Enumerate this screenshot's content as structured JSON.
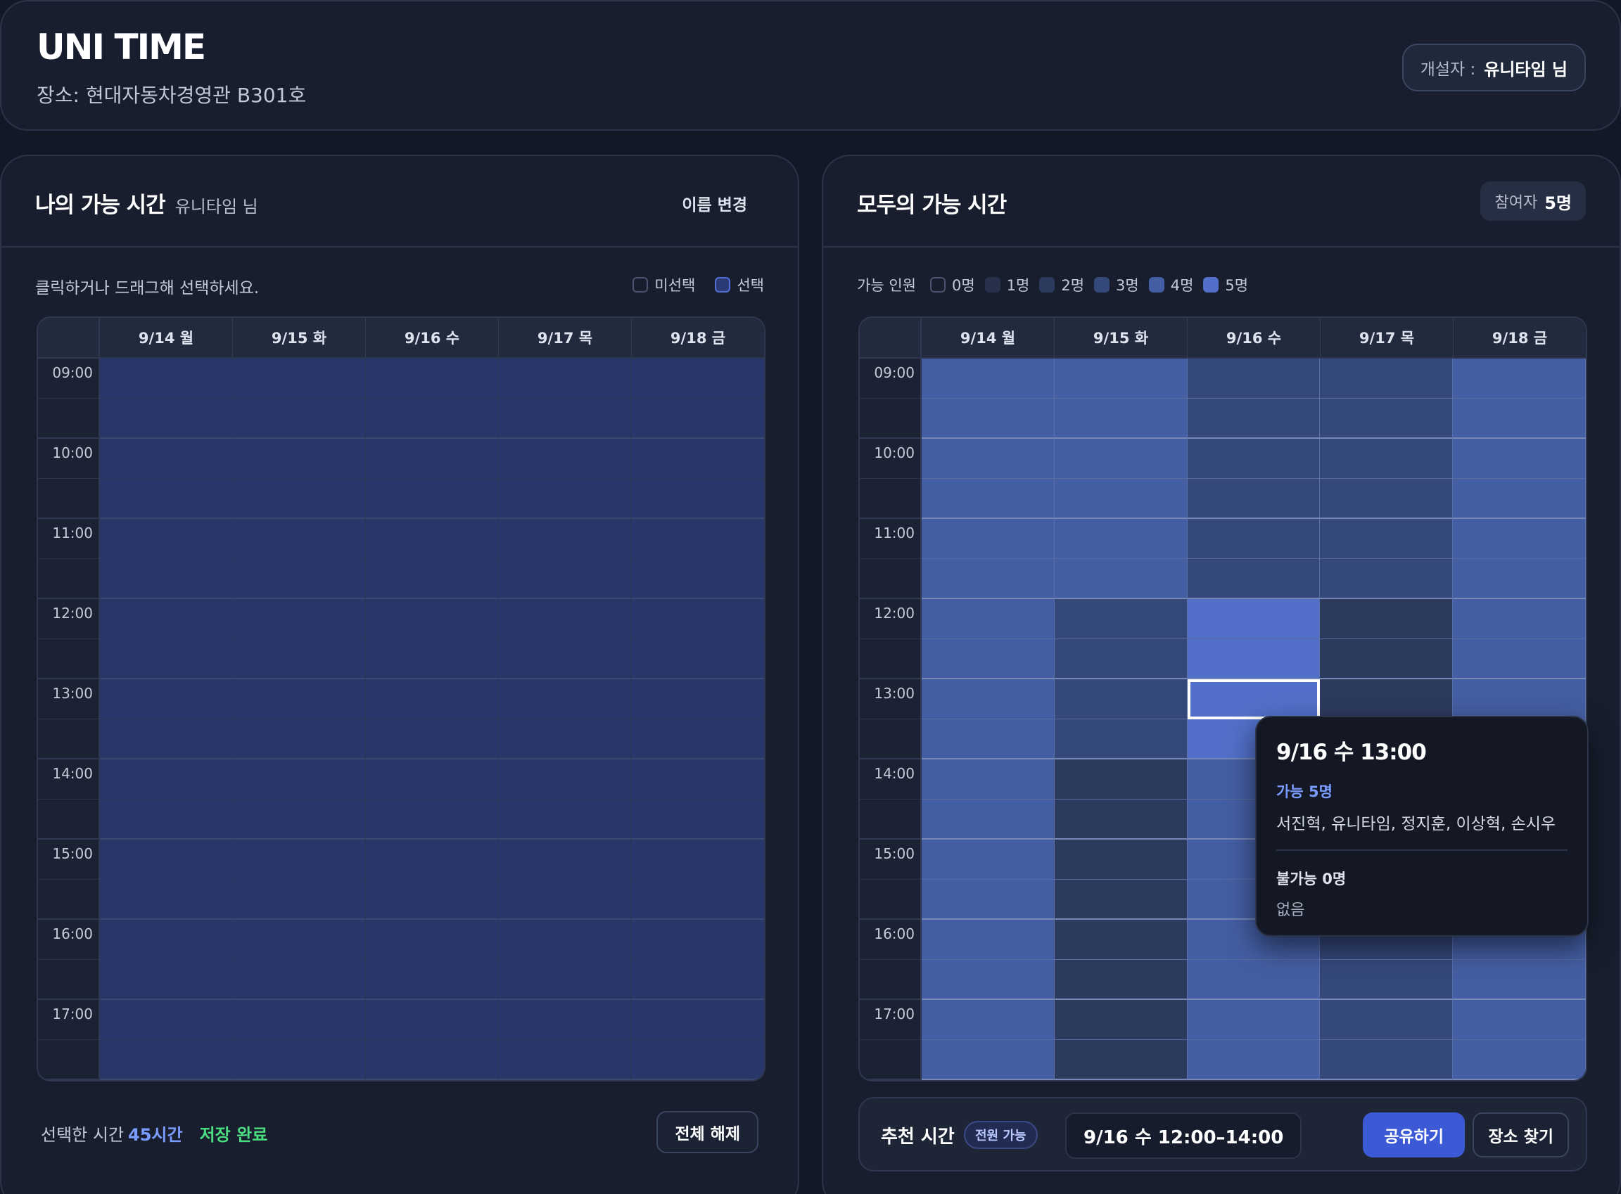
{
  "header": {
    "title": "UNI TIME",
    "location": "장소: 현대자동차경영관 B301호",
    "creator_label": "개설자 :",
    "creator_name": "유니타임 님"
  },
  "my_panel": {
    "title": "나의 가능 시간",
    "user": "유니타임 님",
    "rename_label": "이름 변경",
    "hint": "클릭하거나 드래그해 선택하세요.",
    "legend": {
      "unselected": "미선택",
      "selected": "선택"
    },
    "footer": {
      "selected_prefix": "선택한 시간",
      "selected_hours": "45시간",
      "save_status": "저장 완료",
      "clear_label": "전체 해제"
    }
  },
  "all_panel": {
    "title": "모두의 가능 시간",
    "participants_label": "참여자",
    "participants_count": "5명",
    "legend_title": "가능 인원",
    "legend": [
      "0명",
      "1명",
      "2명",
      "3명",
      "4명",
      "5명"
    ]
  },
  "days": [
    "9/14 월",
    "9/15 화",
    "9/16 수",
    "9/17 목",
    "9/18 금"
  ],
  "time_labels": [
    "09:00",
    "",
    "10:00",
    "",
    "11:00",
    "",
    "12:00",
    "",
    "13:00",
    "",
    "14:00",
    "",
    "15:00",
    "",
    "16:00",
    "",
    "17:00",
    ""
  ],
  "colors": {
    "heat": [
      "#212a40",
      "#27314c",
      "#2c3a5e",
      "#34487a",
      "#445ea3",
      "#5270c9"
    ],
    "my_selected": "#28366a"
  },
  "availability_counts": [
    [
      4,
      4,
      3,
      3,
      4
    ],
    [
      4,
      4,
      3,
      3,
      4
    ],
    [
      4,
      4,
      3,
      3,
      4
    ],
    [
      4,
      4,
      3,
      3,
      4
    ],
    [
      4,
      4,
      3,
      3,
      4
    ],
    [
      4,
      4,
      3,
      3,
      4
    ],
    [
      4,
      3,
      5,
      2,
      4
    ],
    [
      4,
      3,
      5,
      2,
      4
    ],
    [
      4,
      3,
      5,
      2,
      4
    ],
    [
      4,
      3,
      5,
      2,
      4
    ],
    [
      4,
      2,
      4,
      3,
      4
    ],
    [
      4,
      2,
      4,
      3,
      4
    ],
    [
      4,
      2,
      4,
      3,
      4
    ],
    [
      4,
      2,
      4,
      3,
      4
    ],
    [
      4,
      2,
      4,
      3,
      4
    ],
    [
      4,
      2,
      4,
      3,
      4
    ],
    [
      4,
      2,
      4,
      3,
      4
    ],
    [
      4,
      2,
      4,
      3,
      4
    ]
  ],
  "highlight": {
    "row": 8,
    "col": 2
  },
  "tooltip": {
    "title": "9/16 수 13:00",
    "available": "가능 5명",
    "available_names": "서진혁, 유니타임, 정지훈, 이상혁, 손시우",
    "unavailable": "불가능 0명",
    "unavailable_names": "없음"
  },
  "recommend": {
    "title": "추천 시간",
    "badge": "전원 가능",
    "time": "9/16 수 12:00–14:00",
    "share_label": "공유하기",
    "place_label": "장소 찾기"
  }
}
